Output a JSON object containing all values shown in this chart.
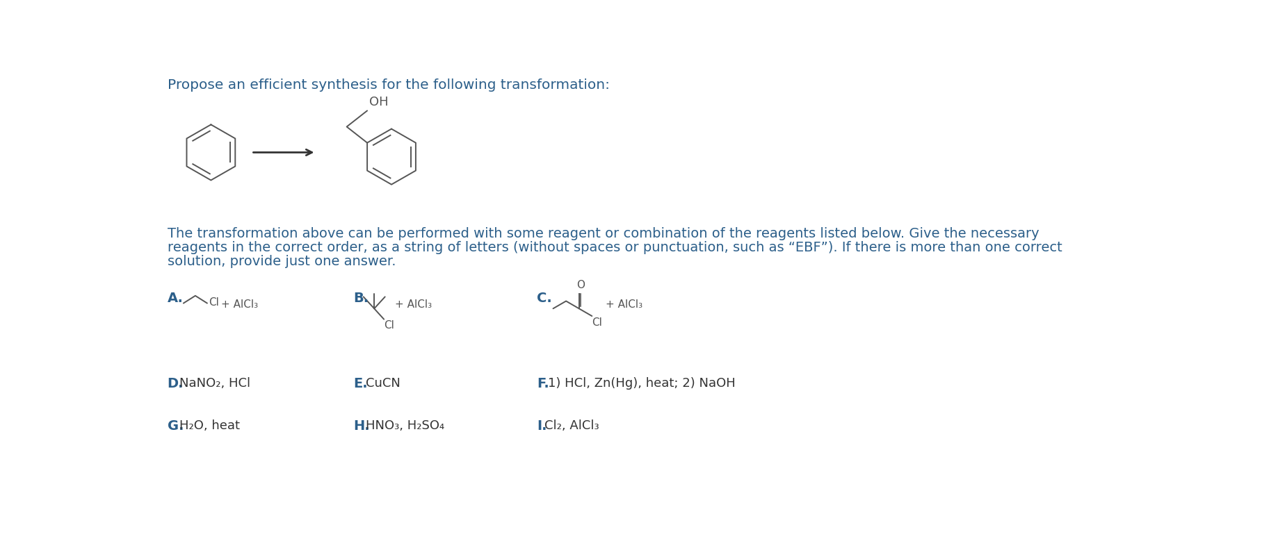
{
  "bg_color": "#ffffff",
  "title_text": "Propose an efficient synthesis for the following transformation:",
  "title_color": "#2c5f8a",
  "title_fontsize": 14.5,
  "body_text_line1": "The transformation above can be performed with some reagent or combination of the reagents listed below. Give the necessary",
  "body_text_line2": "reagents in the correct order, as a string of letters (without spaces or punctuation, such as “EBF”). If there is more than one correct",
  "body_text_line3": "solution, provide just one answer.",
  "body_color": "#2c5f8a",
  "body_fontsize": 14,
  "struct_color": "#555555",
  "struct_lw": 1.4,
  "label_color": "#2c5f8a",
  "label_fontsize": 14,
  "text_color": "#333333",
  "text_fontsize": 13
}
